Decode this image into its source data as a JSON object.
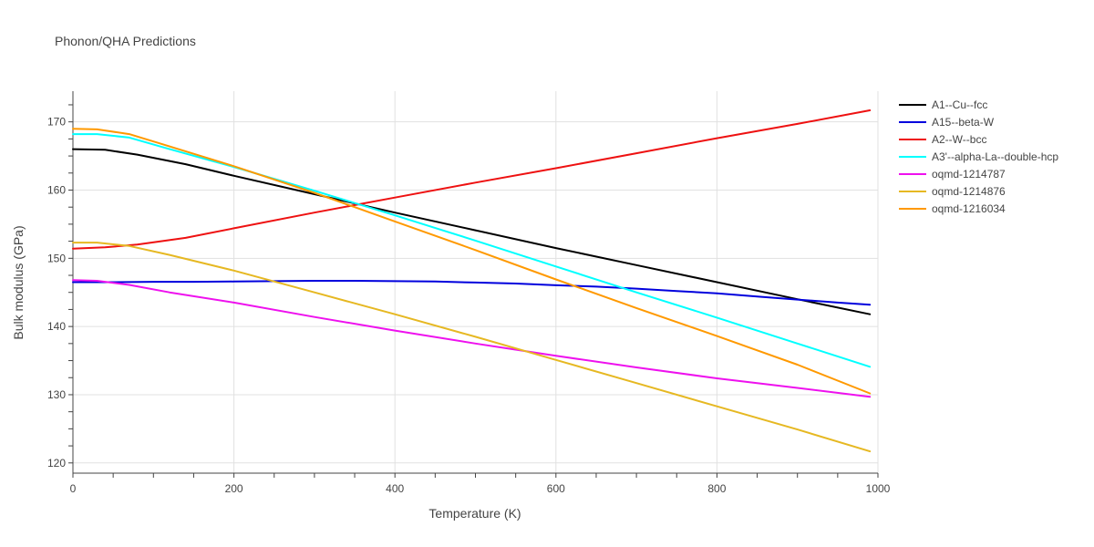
{
  "chart_data": {
    "type": "line",
    "title": "Phonon/QHA Predictions",
    "xlabel": "Temperature (K)",
    "ylabel": "Bulk modulus (GPa)",
    "xlim": [
      0,
      1000
    ],
    "ylim": [
      118.5,
      174.5
    ],
    "xticks": [
      0,
      200,
      400,
      600,
      800,
      1000
    ],
    "yticks": [
      120,
      130,
      140,
      150,
      160,
      170
    ],
    "grid": true,
    "legend_position": "top-right",
    "series": [
      {
        "name": "A1--Cu--fcc",
        "color": "#000000",
        "x": [
          0,
          40,
          80,
          140,
          200,
          300,
          400,
          500,
          600,
          700,
          800,
          900,
          990
        ],
        "y": [
          166.0,
          165.9,
          165.2,
          163.8,
          162.1,
          159.4,
          156.7,
          154.1,
          151.5,
          149.0,
          146.5,
          144.0,
          141.8
        ]
      },
      {
        "name": "A15--beta-W",
        "color": "#0000dd",
        "x": [
          0,
          50,
          100,
          150,
          200,
          250,
          300,
          350,
          400,
          450,
          500,
          550,
          600,
          650,
          700,
          750,
          800,
          850,
          900,
          950,
          990
        ],
        "y": [
          146.5,
          146.5,
          146.55,
          146.55,
          146.6,
          146.65,
          146.7,
          146.7,
          146.65,
          146.6,
          146.45,
          146.3,
          146.05,
          145.85,
          145.55,
          145.2,
          144.85,
          144.4,
          143.95,
          143.5,
          143.2
        ]
      },
      {
        "name": "A2--W--bcc",
        "color": "#ee1111",
        "x": [
          0,
          40,
          80,
          140,
          200,
          300,
          400,
          500,
          600,
          700,
          800,
          900,
          990
        ],
        "y": [
          151.4,
          151.6,
          152.0,
          153.0,
          154.4,
          156.7,
          158.9,
          161.1,
          163.2,
          165.4,
          167.6,
          169.7,
          171.7
        ]
      },
      {
        "name": "A3'--alpha-La--double-hcp",
        "color": "#00ffff",
        "x": [
          0,
          30,
          70,
          120,
          200,
          300,
          400,
          500,
          600,
          700,
          800,
          900,
          990
        ],
        "y": [
          168.2,
          168.2,
          167.7,
          166.0,
          163.4,
          159.9,
          156.3,
          152.6,
          148.8,
          145.0,
          141.3,
          137.5,
          134.1
        ]
      },
      {
        "name": "oqmd-1214787",
        "color": "#ee11ee",
        "x": [
          0,
          30,
          70,
          120,
          200,
          300,
          400,
          500,
          600,
          700,
          800,
          900,
          990
        ],
        "y": [
          146.8,
          146.7,
          146.1,
          145.0,
          143.5,
          141.4,
          139.4,
          137.5,
          135.7,
          134.0,
          132.4,
          131.0,
          129.7
        ]
      },
      {
        "name": "oqmd-1214876",
        "color": "#e6b822",
        "x": [
          0,
          30,
          70,
          120,
          200,
          300,
          400,
          500,
          600,
          700,
          800,
          900,
          990
        ],
        "y": [
          152.3,
          152.3,
          151.8,
          150.5,
          148.2,
          145.0,
          141.8,
          138.5,
          135.1,
          131.7,
          128.3,
          124.9,
          121.7
        ]
      },
      {
        "name": "oqmd-1216034",
        "color": "#ff9900",
        "x": [
          0,
          30,
          70,
          120,
          200,
          300,
          400,
          500,
          600,
          700,
          800,
          900,
          990
        ],
        "y": [
          169.0,
          168.9,
          168.2,
          166.4,
          163.5,
          159.6,
          155.4,
          151.2,
          146.9,
          142.7,
          138.6,
          134.4,
          130.2
        ]
      }
    ]
  }
}
